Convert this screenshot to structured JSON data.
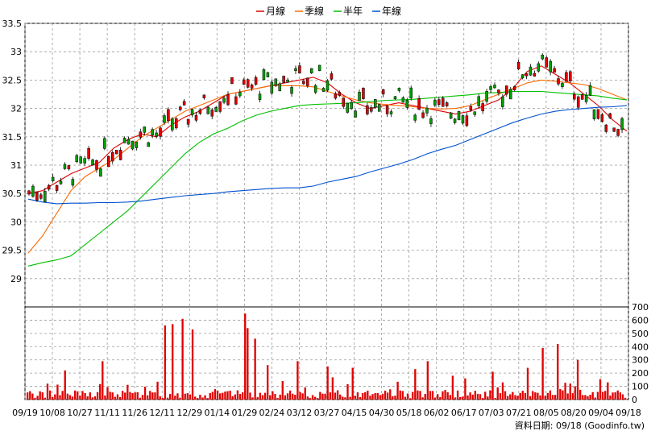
{
  "chart_data": [
    {
      "type": "candlestick",
      "ylim": [
        28.5,
        33.5
      ],
      "price_ticks": [
        "29",
        "29.5",
        "30",
        "30.5",
        "31",
        "31.5",
        "32",
        "32.5",
        "33",
        "33.5"
      ],
      "price_tick_values": [
        29,
        29.5,
        30,
        30.5,
        31,
        31.5,
        32,
        32.5,
        33,
        33.5
      ],
      "legend": [
        {
          "name": "月線",
          "color": "#e00000"
        },
        {
          "name": "季線",
          "color": "#ff6a00"
        },
        {
          "name": "半年",
          "color": "#00c000"
        },
        {
          "name": "年線",
          "color": "#0050d0"
        }
      ],
      "up_color": "#e00000",
      "down_color": "#00a000",
      "grid": true,
      "series": [
        {
          "name": "月線",
          "values": [
            30.5,
            30.55,
            30.7,
            30.85,
            30.95,
            31.05,
            31.3,
            31.45,
            31.55,
            31.5,
            31.7,
            31.85,
            31.95,
            32.1,
            32.25,
            32.3,
            32.35,
            32.4,
            32.45,
            32.5,
            32.55,
            32.45,
            32.25,
            32.1,
            32.0,
            32.05,
            32.1,
            32.05,
            32.0,
            31.95,
            31.9,
            31.95,
            32.05,
            32.15,
            32.35,
            32.65,
            32.75,
            32.6,
            32.45,
            32.25,
            32.05,
            31.8,
            31.6
          ]
        },
        {
          "name": "季線",
          "values": [
            29.45,
            29.75,
            30.15,
            30.55,
            30.8,
            30.95,
            31.1,
            31.3,
            31.5,
            31.65,
            31.8,
            31.95,
            32.05,
            32.15,
            32.25,
            32.3,
            32.35,
            32.4,
            32.4,
            32.4,
            32.38,
            32.3,
            32.22,
            32.15,
            32.1,
            32.07,
            32.05,
            32.03,
            32.0,
            31.99,
            32.0,
            32.05,
            32.15,
            32.25,
            32.35,
            32.45,
            32.5,
            32.48,
            32.45,
            32.42,
            32.35,
            32.25,
            32.15
          ]
        },
        {
          "name": "半年",
          "values": [
            29.22,
            29.28,
            29.33,
            29.4,
            29.6,
            29.8,
            30.0,
            30.2,
            30.45,
            30.7,
            30.95,
            31.2,
            31.4,
            31.55,
            31.65,
            31.78,
            31.88,
            31.95,
            32.0,
            32.05,
            32.07,
            32.08,
            32.09,
            32.1,
            32.12,
            32.14,
            32.15,
            32.16,
            32.18,
            32.2,
            32.22,
            32.24,
            32.27,
            32.28,
            32.3,
            32.3,
            32.3,
            32.28,
            32.26,
            32.24,
            32.22,
            32.18,
            32.15
          ]
        },
        {
          "name": "年線",
          "values": [
            30.4,
            30.35,
            30.32,
            30.33,
            30.33,
            30.34,
            30.34,
            30.35,
            30.37,
            30.4,
            30.43,
            30.46,
            30.48,
            30.5,
            30.53,
            30.55,
            30.57,
            30.59,
            30.6,
            30.6,
            30.63,
            30.7,
            30.75,
            30.8,
            30.88,
            30.95,
            31.02,
            31.1,
            31.2,
            31.28,
            31.35,
            31.45,
            31.55,
            31.65,
            31.75,
            31.83,
            31.9,
            31.95,
            31.98,
            32.0,
            32.02,
            32.03,
            32.05
          ]
        }
      ]
    },
    {
      "type": "bar",
      "ylim": [
        0,
        700
      ],
      "volume_ticks": [
        "0",
        "100",
        "200",
        "300",
        "400",
        "500",
        "600",
        "700"
      ],
      "volume_tick_values": [
        0,
        100,
        200,
        300,
        400,
        500,
        600,
        700
      ],
      "color": "#e00000"
    }
  ],
  "x_axis": {
    "labels": [
      "09/19",
      "10/08",
      "10/27",
      "11/11",
      "11/26",
      "12/11",
      "12/29",
      "01/14",
      "01/29",
      "02/24",
      "03/12",
      "03/27",
      "04/15",
      "04/30",
      "05/18",
      "06/02",
      "06/17",
      "07/03",
      "07/21",
      "08/05",
      "08/20",
      "09/04",
      "09/18"
    ]
  },
  "source_label": "資料日期: 09/18 (Goodinfo.tw)"
}
